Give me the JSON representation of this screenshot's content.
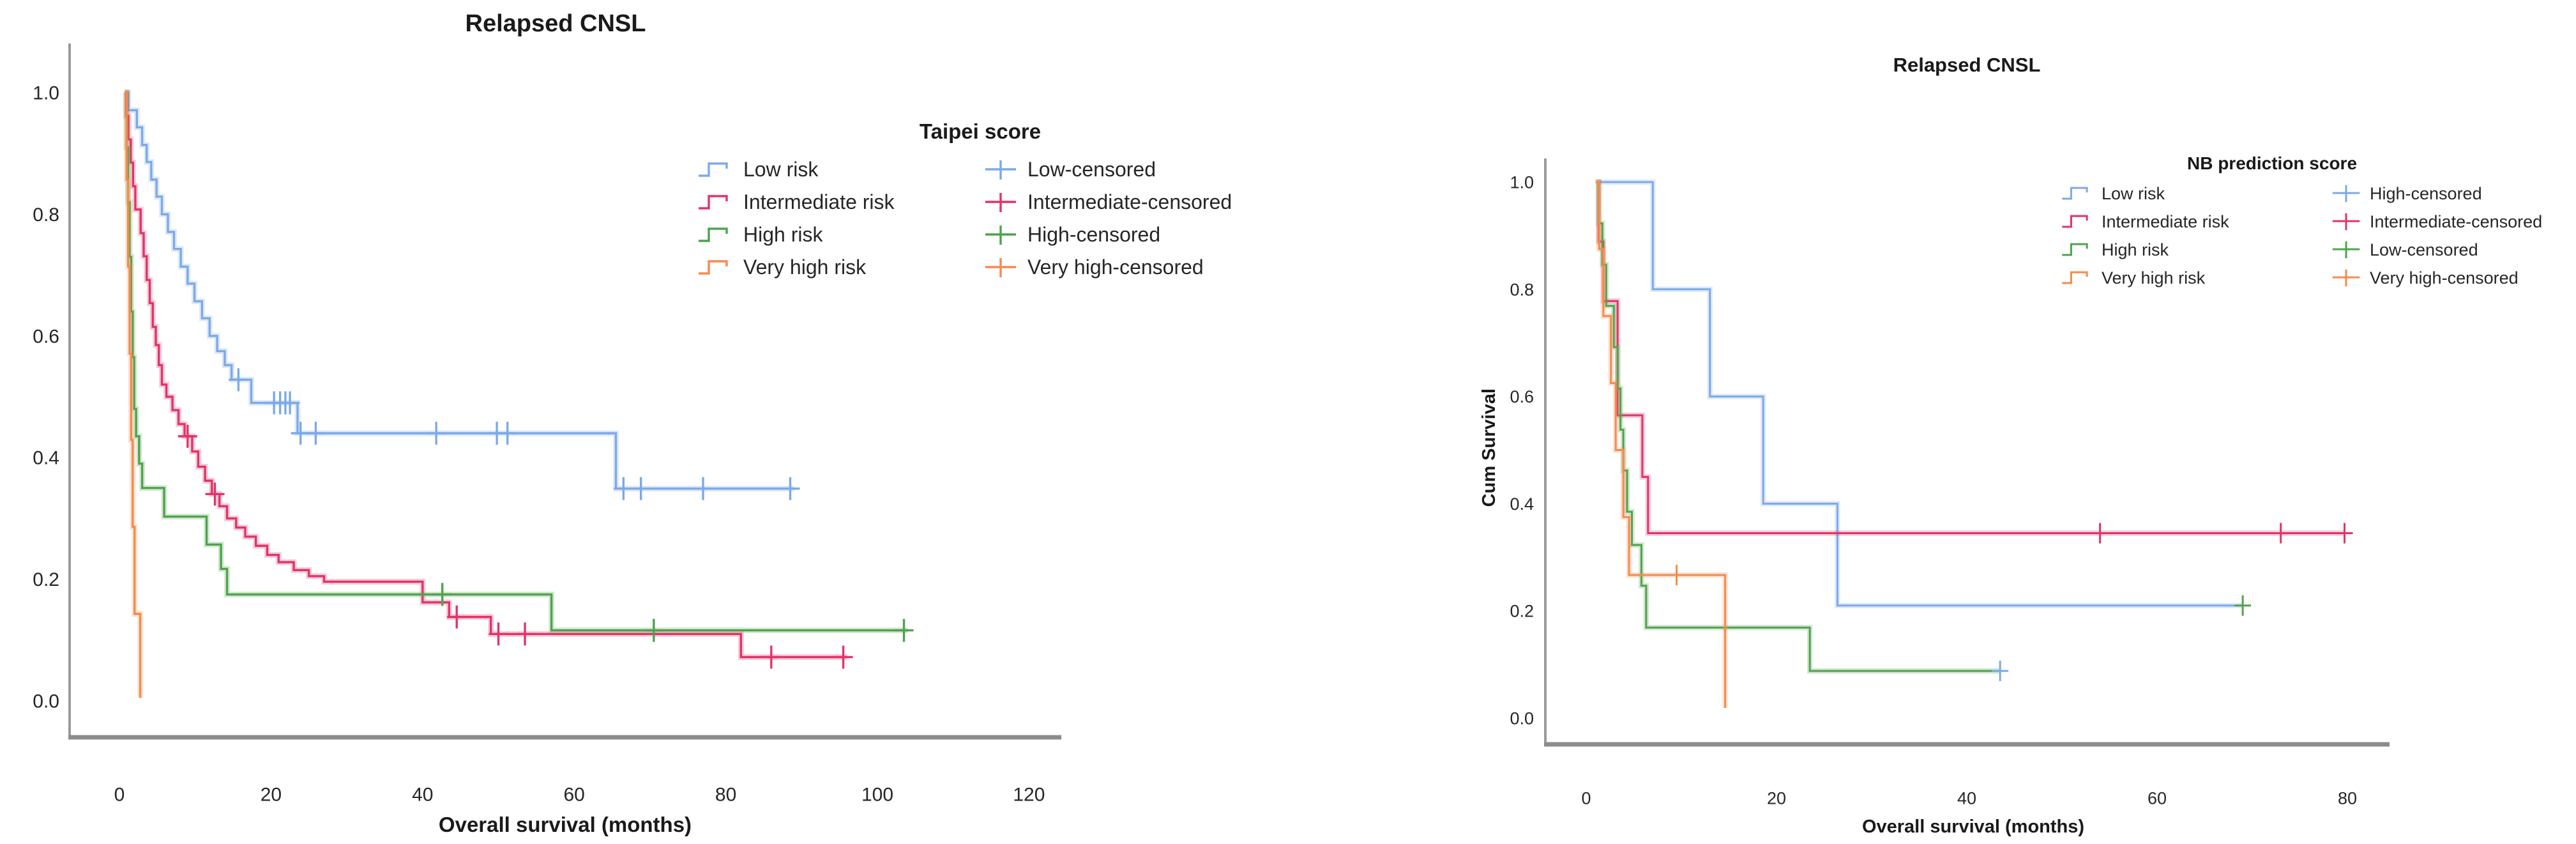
{
  "page": {
    "background": "#ffffff"
  },
  "colors": {
    "low": "#7CA9E8",
    "intermediate": "#E23368",
    "high": "#4FA24D",
    "very_high": "#F58A4D",
    "axis": "#9a9a9a",
    "baseline": "#8c8c8c",
    "tick_text": "#262626"
  },
  "chart_data": [
    {
      "type": "line",
      "subtype": "kaplan-meier-step",
      "title": "Relapsed CNSL",
      "xlabel": "Overall survival (months)",
      "ylabel": "",
      "xlim": [
        0,
        120
      ],
      "ylim": [
        0.0,
        1.0
      ],
      "xticks": [
        0,
        20,
        40,
        60,
        80,
        100,
        120
      ],
      "yticks": [
        1.0,
        0.8,
        0.6,
        0.4,
        0.2,
        0.0
      ],
      "grid": false,
      "legend": {
        "title": "Taipei score",
        "position": "upper-right-inside",
        "risk_items": [
          {
            "label": "Low risk",
            "color": "#7CA9E8"
          },
          {
            "label": "Intermediate risk",
            "color": "#E23368"
          },
          {
            "label": "High risk",
            "color": "#4FA24D"
          },
          {
            "label": "Very high risk",
            "color": "#F58A4D"
          }
        ],
        "censored_items": [
          {
            "label": "Low-censored",
            "color": "#7CA9E8"
          },
          {
            "label": "Intermediate-censored",
            "color": "#E23368"
          },
          {
            "label": "High-censored",
            "color": "#4FA24D"
          },
          {
            "label": "Very high-censored",
            "color": "#F58A4D"
          }
        ]
      },
      "series": [
        {
          "name": "Low risk",
          "color": "#7CA9E8",
          "points": [
            [
              0.7,
              1.0
            ],
            [
              1.2,
              0.971
            ],
            [
              2.3,
              0.943
            ],
            [
              3.0,
              0.914
            ],
            [
              3.6,
              0.886
            ],
            [
              4.2,
              0.857
            ],
            [
              4.9,
              0.829
            ],
            [
              5.6,
              0.8
            ],
            [
              6.4,
              0.771
            ],
            [
              7.2,
              0.743
            ],
            [
              8.1,
              0.714
            ],
            [
              9.0,
              0.686
            ],
            [
              9.9,
              0.657
            ],
            [
              10.9,
              0.629
            ],
            [
              11.9,
              0.6
            ],
            [
              12.9,
              0.575
            ],
            [
              13.9,
              0.552
            ],
            [
              14.8,
              0.528
            ],
            [
              17.4,
              0.49
            ],
            [
              23.5,
              0.44
            ],
            [
              65.5,
              0.349
            ]
          ],
          "end": 89,
          "censors": [
            [
              15.7,
              0.528
            ],
            [
              20.4,
              0.49
            ],
            [
              21.2,
              0.49
            ],
            [
              21.9,
              0.49
            ],
            [
              22.5,
              0.49
            ],
            [
              23.9,
              0.44
            ],
            [
              25.9,
              0.44
            ],
            [
              41.8,
              0.44
            ],
            [
              49.8,
              0.44
            ],
            [
              51.2,
              0.44
            ],
            [
              66.5,
              0.349
            ],
            [
              68.8,
              0.349
            ],
            [
              77,
              0.349
            ],
            [
              88.5,
              0.349
            ]
          ]
        },
        {
          "name": "Intermediate risk",
          "color": "#E23368",
          "points": [
            [
              0.7,
              1.0
            ],
            [
              0.9,
              0.962
            ],
            [
              1.2,
              0.923
            ],
            [
              1.5,
              0.885
            ],
            [
              1.8,
              0.846
            ],
            [
              2.1,
              0.808
            ],
            [
              2.8,
              0.769
            ],
            [
              3.2,
              0.731
            ],
            [
              3.6,
              0.692
            ],
            [
              4.0,
              0.654
            ],
            [
              4.4,
              0.615
            ],
            [
              4.8,
              0.585
            ],
            [
              5.2,
              0.552
            ],
            [
              5.6,
              0.52
            ],
            [
              6.2,
              0.5
            ],
            [
              7.0,
              0.478
            ],
            [
              7.8,
              0.455
            ],
            [
              8.6,
              0.435
            ],
            [
              9.6,
              0.41
            ],
            [
              10.4,
              0.385
            ],
            [
              11.3,
              0.362
            ],
            [
              12.2,
              0.34
            ],
            [
              13.2,
              0.32
            ],
            [
              14.2,
              0.3
            ],
            [
              15.4,
              0.285
            ],
            [
              16.6,
              0.27
            ],
            [
              18,
              0.255
            ],
            [
              19.5,
              0.24
            ],
            [
              21,
              0.228
            ],
            [
              23,
              0.215
            ],
            [
              25,
              0.205
            ],
            [
              27,
              0.196
            ],
            [
              40,
              0.162
            ],
            [
              43.5,
              0.138
            ],
            [
              49,
              0.11
            ],
            [
              82,
              0.072
            ]
          ],
          "end": 96,
          "censors": [
            [
              9.0,
              0.435
            ],
            [
              12.6,
              0.34
            ],
            [
              44.5,
              0.138
            ],
            [
              50,
              0.11
            ],
            [
              53.5,
              0.11
            ],
            [
              86,
              0.072
            ],
            [
              95.5,
              0.072
            ]
          ]
        },
        {
          "name": "High risk",
          "color": "#4FA24D",
          "points": [
            [
              0.7,
              1.0
            ],
            [
              0.95,
              0.91
            ],
            [
              1.15,
              0.82
            ],
            [
              1.35,
              0.73
            ],
            [
              1.55,
              0.64
            ],
            [
              1.75,
              0.565
            ],
            [
              1.95,
              0.48
            ],
            [
              2.2,
              0.435
            ],
            [
              2.6,
              0.39
            ],
            [
              3.0,
              0.35
            ],
            [
              5.9,
              0.303
            ],
            [
              11.5,
              0.257
            ],
            [
              13.4,
              0.217
            ],
            [
              14.2,
              0.175
            ],
            [
              57,
              0.116
            ]
          ],
          "end": 104,
          "censors": [
            [
              42.6,
              0.175
            ],
            [
              70.5,
              0.116
            ],
            [
              103.5,
              0.116
            ]
          ]
        },
        {
          "name": "Very high risk",
          "color": "#F58A4D",
          "points": [
            [
              0.7,
              1.0
            ],
            [
              0.95,
              0.857
            ],
            [
              1.15,
              0.714
            ],
            [
              1.35,
              0.571
            ],
            [
              1.55,
              0.429
            ],
            [
              1.75,
              0.286
            ],
            [
              2.0,
              0.143
            ],
            [
              2.75,
              0.005
            ]
          ],
          "end": 2.75,
          "censors": []
        }
      ]
    },
    {
      "type": "line",
      "subtype": "kaplan-meier-step",
      "title": "Relapsed CNSL",
      "xlabel": "Overall survival (months)",
      "ylabel": "Cum Survival",
      "xlim": [
        0,
        80
      ],
      "ylim": [
        0.0,
        1.0
      ],
      "xticks": [
        0,
        20,
        40,
        60,
        80
      ],
      "yticks": [
        1.0,
        0.8,
        0.6,
        0.4,
        0.2,
        0.0
      ],
      "grid": false,
      "legend": {
        "title": "NB prediction score",
        "position": "upper-right-inside",
        "risk_items": [
          {
            "label": "Low risk",
            "color": "#7CA9E8"
          },
          {
            "label": "Intermediate risk",
            "color": "#E23368"
          },
          {
            "label": "High risk",
            "color": "#4FA24D"
          },
          {
            "label": "Very high risk",
            "color": "#F58A4D"
          }
        ],
        "censored_items": [
          {
            "label": "High-censored",
            "color": "#7CA9E8"
          },
          {
            "label": "Intermediate-censored",
            "color": "#E23368"
          },
          {
            "label": "Low-censored",
            "color": "#4FA24D"
          },
          {
            "label": "Very high-censored",
            "color": "#F58A4D"
          }
        ]
      },
      "series": [
        {
          "name": "Low risk",
          "color": "#7CA9E8",
          "censor_color": "#4FA24D",
          "points": [
            [
              1.2,
              1.0
            ],
            [
              7.0,
              0.8
            ],
            [
              13.0,
              0.6
            ],
            [
              18.6,
              0.4
            ],
            [
              26.4,
              0.21
            ]
          ],
          "end": 69,
          "censors": [
            [
              69,
              0.21
            ]
          ]
        },
        {
          "name": "Intermediate risk",
          "color": "#E23368",
          "points": [
            [
              1.0,
              1.0
            ],
            [
              1.3,
              0.889
            ],
            [
              1.8,
              0.778
            ],
            [
              3.3,
              0.565
            ],
            [
              5.9,
              0.45
            ],
            [
              6.5,
              0.345
            ]
          ],
          "end": 79.7,
          "censors": [
            [
              54,
              0.345
            ],
            [
              73,
              0.345
            ],
            [
              79.7,
              0.345
            ]
          ]
        },
        {
          "name": "High risk",
          "color": "#4FA24D",
          "censor_color": "#7CA9E8",
          "points": [
            [
              1.0,
              1.0
            ],
            [
              1.3,
              0.923
            ],
            [
              1.7,
              0.846
            ],
            [
              2.1,
              0.769
            ],
            [
              2.9,
              0.692
            ],
            [
              3.3,
              0.615
            ],
            [
              3.6,
              0.538
            ],
            [
              3.9,
              0.462
            ],
            [
              4.3,
              0.385
            ],
            [
              4.8,
              0.323
            ],
            [
              5.8,
              0.247
            ],
            [
              6.3,
              0.169
            ],
            [
              23.5,
              0.088
            ]
          ],
          "end": 43.5,
          "censors": [
            [
              43.5,
              0.088
            ]
          ]
        },
        {
          "name": "Very high risk",
          "color": "#F58A4D",
          "points": [
            [
              1.0,
              1.0
            ],
            [
              1.35,
              0.875
            ],
            [
              1.8,
              0.75
            ],
            [
              2.6,
              0.625
            ],
            [
              3.1,
              0.5
            ],
            [
              3.9,
              0.375
            ],
            [
              4.5,
              0.267
            ],
            [
              14.6,
              0.019
            ]
          ],
          "end": 14.6,
          "censors": [
            [
              9.5,
              0.267
            ]
          ]
        }
      ]
    }
  ]
}
